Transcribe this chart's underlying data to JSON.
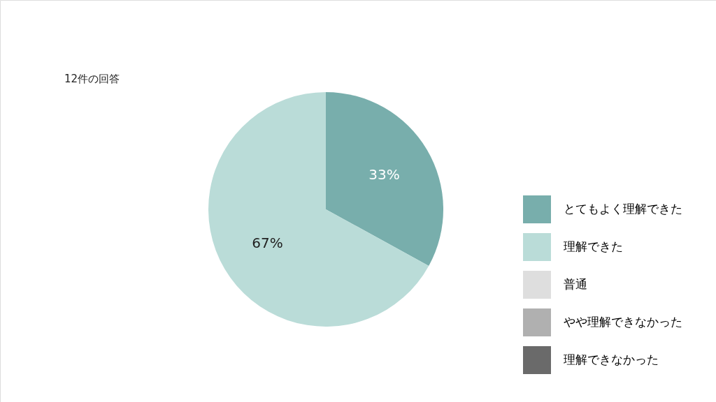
{
  "chart_data": {
    "type": "pie",
    "title": "12件の回答",
    "categories": [
      "とてもよく理解できた",
      "理解できた",
      "普通",
      "やや理解できなかった",
      "理解できなかった"
    ],
    "values": [
      33,
      67,
      0,
      0,
      0
    ],
    "colors": [
      "#78aeac",
      "#badcd8",
      "#dedede",
      "#b0b0b0",
      "#6a6a6a"
    ],
    "value_labels": [
      "33%",
      "67%",
      null,
      null,
      null
    ],
    "legend": "right"
  }
}
